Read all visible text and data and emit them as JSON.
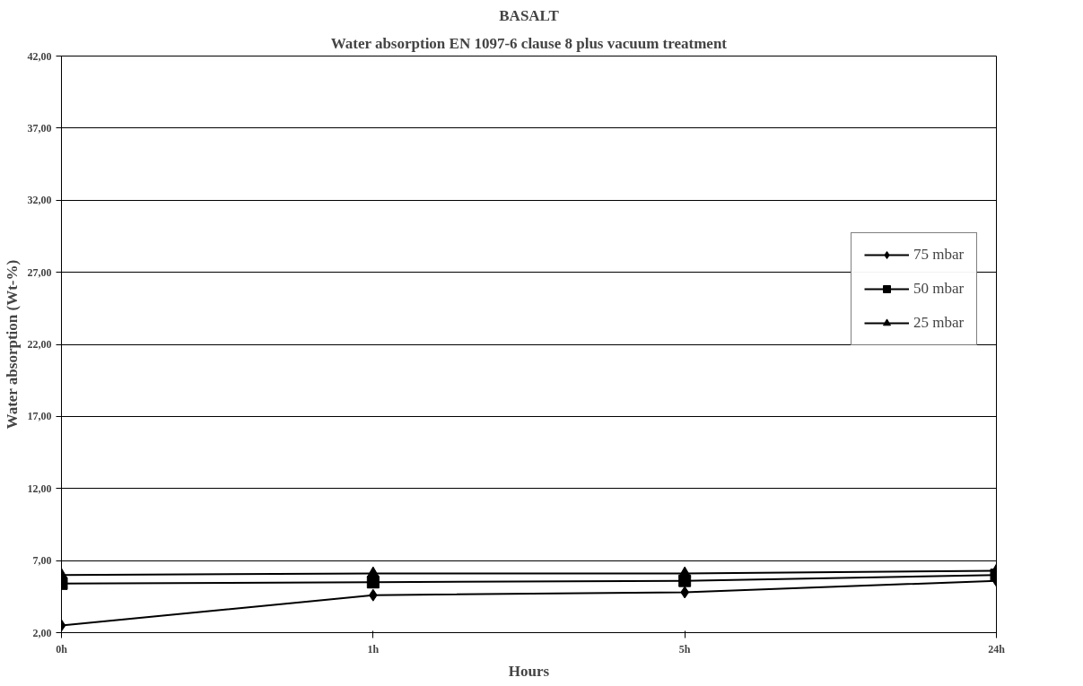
{
  "chart_data": {
    "type": "line",
    "title": "BASALT",
    "subtitle": "Water absorption EN 1097-6 clause 8 plus vacuum treatment",
    "xlabel": "Hours",
    "ylabel": "Water absorption (Wt-%)",
    "categories": [
      "0h",
      "1h",
      "5h",
      "24h"
    ],
    "series": [
      {
        "name": "75 mbar",
        "color": "#000000",
        "marker": "diamond",
        "values": [
          2.5,
          4.6,
          4.8,
          5.6
        ]
      },
      {
        "name": "50 mbar",
        "color": "#000000",
        "marker": "square",
        "values": [
          5.4,
          5.5,
          5.6,
          6.0
        ]
      },
      {
        "name": "25 mbar",
        "color": "#000000",
        "marker": "triangle",
        "values": [
          6.0,
          6.1,
          6.1,
          6.3
        ]
      }
    ],
    "ylim": [
      2,
      42
    ],
    "yticks": [
      {
        "value": 2,
        "label": "2,00"
      },
      {
        "value": 7,
        "label": "7,00"
      },
      {
        "value": 12,
        "label": "12,00"
      },
      {
        "value": 17,
        "label": "17,00"
      },
      {
        "value": 22,
        "label": "22,00"
      },
      {
        "value": 27,
        "label": "27,00"
      },
      {
        "value": 32,
        "label": "32,00"
      },
      {
        "value": 37,
        "label": "37,00"
      },
      {
        "value": 42,
        "label": "42,00"
      }
    ],
    "grid": "y",
    "legend": "right",
    "line_style": "solid"
  }
}
